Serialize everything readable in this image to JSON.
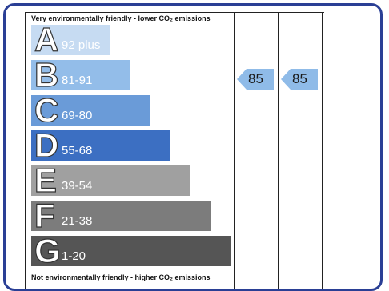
{
  "header": {
    "top_label": "Very environmentally friendly - lower CO₂ emissions",
    "bottom_label": "Not environmentally friendly - higher CO₂ emissions"
  },
  "bands": [
    {
      "letter": "A",
      "range": "92 plus"
    },
    {
      "letter": "B",
      "range": "81-91"
    },
    {
      "letter": "C",
      "range": "69-80"
    },
    {
      "letter": "D",
      "range": "55-68"
    },
    {
      "letter": "E",
      "range": "39-54"
    },
    {
      "letter": "F",
      "range": "21-38"
    },
    {
      "letter": "G",
      "range": "1-20"
    }
  ],
  "ratings": {
    "current": "85",
    "potential": "85"
  }
}
